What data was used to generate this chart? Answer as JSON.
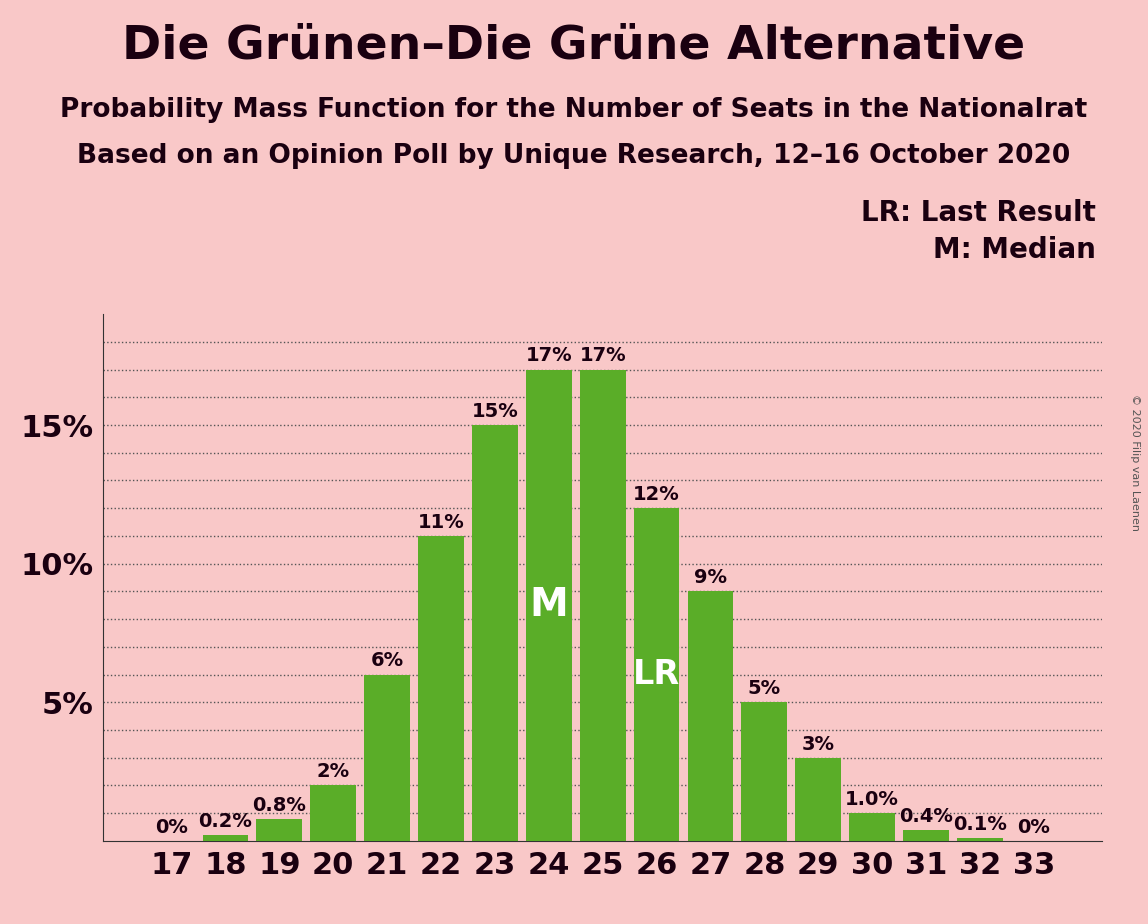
{
  "title": "Die Grünen–Die Grüne Alternative",
  "subtitle1": "Probability Mass Function for the Number of Seats in the Nationalrat",
  "subtitle2": "Based on an Opinion Poll by Unique Research, 12–16 October 2020",
  "copyright": "© 2020 Filip van Laenen",
  "seats": [
    17,
    18,
    19,
    20,
    21,
    22,
    23,
    24,
    25,
    26,
    27,
    28,
    29,
    30,
    31,
    32,
    33
  ],
  "probabilities": [
    0.0,
    0.2,
    0.8,
    2.0,
    6.0,
    11.0,
    15.0,
    17.0,
    17.0,
    12.0,
    9.0,
    5.0,
    3.0,
    1.0,
    0.4,
    0.1,
    0.0
  ],
  "labels": [
    "0%",
    "0.2%",
    "0.8%",
    "2%",
    "6%",
    "11%",
    "15%",
    "17%",
    "17%",
    "12%",
    "9%",
    "5%",
    "3%",
    "1.0%",
    "0.4%",
    "0.1%",
    "0%"
  ],
  "bar_color": "#5aad28",
  "background_color": "#f9c8c8",
  "text_color": "#1a0010",
  "median_seat": 24,
  "last_result_seat": 26,
  "legend_lr": "LR: Last Result",
  "legend_m": "M: Median",
  "ylabel_ticks": [
    "5%",
    "10%",
    "15%"
  ],
  "ylabel_values": [
    5,
    10,
    15
  ],
  "ylim": [
    0,
    19
  ],
  "title_fontsize": 34,
  "subtitle_fontsize": 19,
  "tick_fontsize": 22,
  "label_fontsize": 14,
  "bar_text_color_dark": "#1a0010",
  "bar_text_color_white": "#ffffff"
}
